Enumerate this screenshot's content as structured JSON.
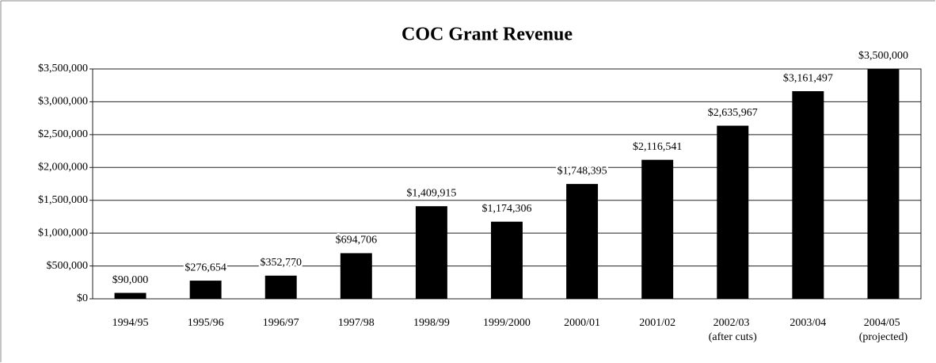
{
  "chart_data": {
    "type": "bar",
    "title": "COC Grant Revenue",
    "categories": [
      "1994/95",
      "1995/96",
      "1996/97",
      "1997/98",
      "1998/99",
      "1999/2000",
      "2000/01",
      "2001/02",
      "2002/03 (after cuts)",
      "2003/04",
      "2004/05 (projected)"
    ],
    "values": [
      90000,
      276654,
      352770,
      694706,
      1409915,
      1174306,
      1748395,
      2116541,
      2635967,
      3161497,
      3500000
    ],
    "value_labels": [
      "$90,000",
      "$276,654",
      "$352,770",
      "$694,706",
      "$1,409,915",
      "$1,174,306",
      "$1,748,395",
      "$2,116,541",
      "$2,635,967",
      "$3,161,497",
      "$3,500,000"
    ],
    "color": "#000000",
    "ylim": [
      0,
      3500000
    ],
    "yticks": [
      {
        "value": 0,
        "label": "$0"
      },
      {
        "value": 500000,
        "label": "$500,000"
      },
      {
        "value": 1000000,
        "label": "$1,000,000"
      },
      {
        "value": 1500000,
        "label": "$1,500,000"
      },
      {
        "value": 2000000,
        "label": "$2,000,000"
      },
      {
        "value": 2500000,
        "label": "$2,500,000"
      },
      {
        "value": 3000000,
        "label": "$3,000,000"
      },
      {
        "value": 3500000,
        "label": "$3,500,000"
      }
    ],
    "grid": true
  }
}
